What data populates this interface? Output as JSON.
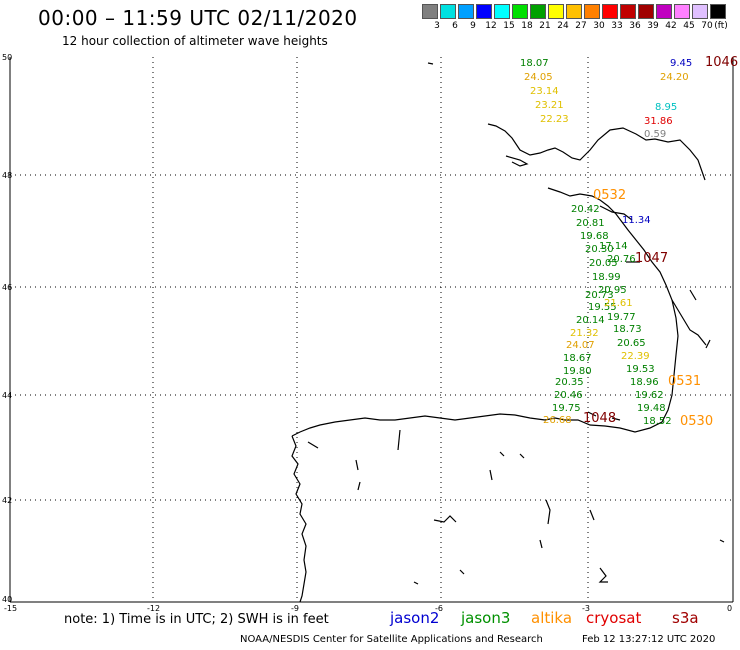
{
  "title": "00:00 – 11:59 UTC 02/11/2020",
  "subtitle": "12 hour collection of altimeter wave heights",
  "scale": {
    "colors": [
      "#808080",
      "#00e0e0",
      "#00a0ff",
      "#0000ff",
      "#00ffff",
      "#00e000",
      "#00a000",
      "#ffff00",
      "#ffc000",
      "#ff8000",
      "#ff0000",
      "#c00000",
      "#a00000",
      "#c000c0",
      "#ff80ff",
      "#e0c0ff",
      "#000000"
    ],
    "labels": [
      "3",
      "6",
      "9",
      "12",
      "15",
      "18",
      "21",
      "24",
      "27",
      "30",
      "33",
      "36",
      "39",
      "42",
      "45",
      "70",
      "(ft)"
    ]
  },
  "axes": {
    "y_ticks": [
      "50",
      "48",
      "46",
      "44",
      "42",
      "40"
    ],
    "x_ticks": [
      "-15",
      "-12",
      "-9",
      "-6",
      "-3",
      "0"
    ]
  },
  "note": "note: 1) Time is in UTC; 2) SWH is in feet",
  "satellites": [
    {
      "name": "jason2",
      "color": "#0000d0"
    },
    {
      "name": "jason3",
      "color": "#009000"
    },
    {
      "name": "altika",
      "color": "#ff9000"
    },
    {
      "name": "cryosat",
      "color": "#e00000"
    },
    {
      "name": "s3a",
      "color": "#a00000"
    }
  ],
  "footer": "NOAA/NESDIS Center for Satellite Applications and Research",
  "footer_time": "Feb 12 13:27:12 UTC 2020",
  "track_times": [
    {
      "text": "1046",
      "color": "#800000"
    },
    {
      "text": "0532",
      "color": "#ff9000"
    },
    {
      "text": "1047",
      "color": "#800000"
    },
    {
      "text": "0531",
      "color": "#ff9000"
    },
    {
      "text": "1048",
      "color": "#800000"
    },
    {
      "text": "0530",
      "color": "#ff9000"
    }
  ],
  "wave_heights": [
    {
      "text": "18.07",
      "color": "#008000"
    },
    {
      "text": "24.05",
      "color": "#e0a000"
    },
    {
      "text": "23.14",
      "color": "#e0c000"
    },
    {
      "text": "23.21",
      "color": "#e0c000"
    },
    {
      "text": "22.23",
      "color": "#e0c000"
    },
    {
      "text": "9.45",
      "color": "#0000c0"
    },
    {
      "text": "24.20",
      "color": "#e0a000"
    },
    {
      "text": "8.95",
      "color": "#00c0c0"
    },
    {
      "text": "31.86",
      "color": "#e00000"
    },
    {
      "text": "0.59",
      "color": "#808080"
    },
    {
      "text": "20.42",
      "color": "#008000"
    },
    {
      "text": "20.81",
      "color": "#008000"
    },
    {
      "text": "11.34",
      "color": "#0000c0"
    },
    {
      "text": "19.68",
      "color": "#008000"
    },
    {
      "text": "17.14",
      "color": "#008000"
    },
    {
      "text": "20.30",
      "color": "#008000"
    },
    {
      "text": "20.76",
      "color": "#008000"
    },
    {
      "text": "20.05",
      "color": "#008000"
    },
    {
      "text": "18.99",
      "color": "#008000"
    },
    {
      "text": "20.95",
      "color": "#008000"
    },
    {
      "text": "20.73",
      "color": "#008000"
    },
    {
      "text": "19.55",
      "color": "#008000"
    },
    {
      "text": "21.61",
      "color": "#e0c000"
    },
    {
      "text": "20.14",
      "color": "#008000"
    },
    {
      "text": "19.77",
      "color": "#008000"
    },
    {
      "text": "21.32",
      "color": "#e0c000"
    },
    {
      "text": "18.73",
      "color": "#008000"
    },
    {
      "text": "24.07",
      "color": "#e0a000"
    },
    {
      "text": "20.65",
      "color": "#008000"
    },
    {
      "text": "18.67",
      "color": "#008000"
    },
    {
      "text": "22.39",
      "color": "#e0c000"
    },
    {
      "text": "19.80",
      "color": "#008000"
    },
    {
      "text": "19.53",
      "color": "#008000"
    },
    {
      "text": "20.35",
      "color": "#008000"
    },
    {
      "text": "18.96",
      "color": "#008000"
    },
    {
      "text": "20.46",
      "color": "#008000"
    },
    {
      "text": "19.62",
      "color": "#008000"
    },
    {
      "text": "19.75",
      "color": "#008000"
    },
    {
      "text": "19.48",
      "color": "#008000"
    },
    {
      "text": "26.68",
      "color": "#e0a000"
    },
    {
      "text": "18.52",
      "color": "#008000"
    }
  ]
}
